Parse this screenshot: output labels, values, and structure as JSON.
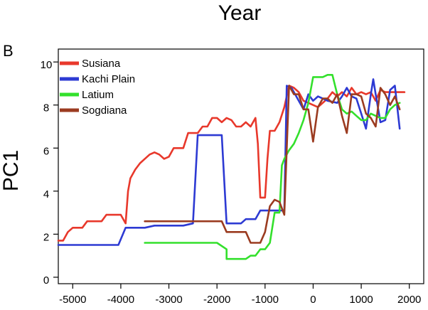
{
  "panel_letter": "B",
  "chart_data": {
    "type": "line",
    "title": "Year",
    "xlabel": "",
    "ylabel": "PC1",
    "xlim": [
      -5300,
      2300
    ],
    "ylim": [
      -0.3,
      10.6
    ],
    "xticks": [
      -5000,
      -4000,
      -3000,
      -2000,
      -1000,
      0,
      1000,
      2000
    ],
    "yticks": [
      0,
      2,
      4,
      6,
      8,
      10
    ],
    "grid": false,
    "legend": "top-left",
    "series": [
      {
        "name": "Susiana",
        "color": "#e8382b",
        "points": [
          [
            -5300,
            1.7
          ],
          [
            -5200,
            1.7
          ],
          [
            -5100,
            2.1
          ],
          [
            -5000,
            2.3
          ],
          [
            -4800,
            2.3
          ],
          [
            -4700,
            2.6
          ],
          [
            -4400,
            2.6
          ],
          [
            -4300,
            2.9
          ],
          [
            -4000,
            2.9
          ],
          [
            -3900,
            2.5
          ],
          [
            -3850,
            4.0
          ],
          [
            -3800,
            4.6
          ],
          [
            -3700,
            5.0
          ],
          [
            -3600,
            5.3
          ],
          [
            -3500,
            5.5
          ],
          [
            -3400,
            5.7
          ],
          [
            -3300,
            5.8
          ],
          [
            -3200,
            5.7
          ],
          [
            -3100,
            5.5
          ],
          [
            -3000,
            5.6
          ],
          [
            -2900,
            6.0
          ],
          [
            -2700,
            6.0
          ],
          [
            -2600,
            6.7
          ],
          [
            -2400,
            6.7
          ],
          [
            -2300,
            7.0
          ],
          [
            -2200,
            7.0
          ],
          [
            -2100,
            7.4
          ],
          [
            -2000,
            7.4
          ],
          [
            -1900,
            7.2
          ],
          [
            -1800,
            7.4
          ],
          [
            -1700,
            7.3
          ],
          [
            -1600,
            7.0
          ],
          [
            -1500,
            7.0
          ],
          [
            -1400,
            7.2
          ],
          [
            -1300,
            7.0
          ],
          [
            -1200,
            7.4
          ],
          [
            -1150,
            6.2
          ],
          [
            -1100,
            3.7
          ],
          [
            -1000,
            3.7
          ],
          [
            -950,
            5.5
          ],
          [
            -900,
            6.8
          ],
          [
            -800,
            6.8
          ],
          [
            -700,
            7.2
          ],
          [
            -600,
            7.9
          ],
          [
            -500,
            8.9
          ],
          [
            -400,
            8.8
          ],
          [
            -300,
            8.6
          ],
          [
            -200,
            8.2
          ],
          [
            0,
            8.0
          ],
          [
            100,
            7.9
          ],
          [
            200,
            8.1
          ],
          [
            300,
            8.3
          ],
          [
            400,
            8.6
          ],
          [
            500,
            8.4
          ],
          [
            600,
            8.6
          ],
          [
            700,
            8.4
          ],
          [
            800,
            8.8
          ],
          [
            900,
            8.5
          ],
          [
            1000,
            8.6
          ],
          [
            1100,
            8.5
          ],
          [
            1200,
            8.6
          ],
          [
            1300,
            8.2
          ],
          [
            1400,
            8.7
          ],
          [
            1500,
            8.6
          ],
          [
            1600,
            8.6
          ],
          [
            1800,
            8.6
          ],
          [
            1900,
            8.6
          ]
        ]
      },
      {
        "name": "Kachi Plain",
        "color": "#2d3ad3",
        "points": [
          [
            -5300,
            1.5
          ],
          [
            -4050,
            1.5
          ],
          [
            -3900,
            2.3
          ],
          [
            -3500,
            2.3
          ],
          [
            -3300,
            2.4
          ],
          [
            -2700,
            2.4
          ],
          [
            -2500,
            2.5
          ],
          [
            -2400,
            6.6
          ],
          [
            -1900,
            6.6
          ],
          [
            -1800,
            2.5
          ],
          [
            -1500,
            2.5
          ],
          [
            -1400,
            2.7
          ],
          [
            -1200,
            2.7
          ],
          [
            -1100,
            3.1
          ],
          [
            -700,
            3.1
          ],
          [
            -600,
            3.1
          ],
          [
            -550,
            8.9
          ],
          [
            -450,
            8.8
          ],
          [
            -350,
            8.4
          ],
          [
            -200,
            7.8
          ],
          [
            -100,
            8.5
          ],
          [
            0,
            8.2
          ],
          [
            100,
            8.4
          ],
          [
            200,
            8.3
          ],
          [
            300,
            8.2
          ],
          [
            500,
            8.1
          ],
          [
            600,
            8.4
          ],
          [
            700,
            8.8
          ],
          [
            800,
            8.4
          ],
          [
            900,
            8.3
          ],
          [
            1000,
            7.6
          ],
          [
            1100,
            6.9
          ],
          [
            1200,
            8.5
          ],
          [
            1250,
            9.2
          ],
          [
            1300,
            8.5
          ],
          [
            1400,
            7.2
          ],
          [
            1500,
            7.3
          ],
          [
            1600,
            8.7
          ],
          [
            1700,
            8.9
          ],
          [
            1800,
            6.9
          ]
        ]
      },
      {
        "name": "Latium",
        "color": "#33e02c",
        "points": [
          [
            -3500,
            1.6
          ],
          [
            -2000,
            1.6
          ],
          [
            -1800,
            1.3
          ],
          [
            -1800,
            0.85
          ],
          [
            -1400,
            0.85
          ],
          [
            -1300,
            1.0
          ],
          [
            -1200,
            1.0
          ],
          [
            -1100,
            1.3
          ],
          [
            -1000,
            1.3
          ],
          [
            -900,
            1.6
          ],
          [
            -800,
            3.0
          ],
          [
            -700,
            3.0
          ],
          [
            -650,
            5.2
          ],
          [
            -600,
            5.5
          ],
          [
            -500,
            5.9
          ],
          [
            -400,
            6.2
          ],
          [
            -300,
            6.7
          ],
          [
            -200,
            7.3
          ],
          [
            -100,
            8.1
          ],
          [
            0,
            9.3
          ],
          [
            100,
            9.3
          ],
          [
            200,
            9.3
          ],
          [
            300,
            9.4
          ],
          [
            400,
            9.4
          ],
          [
            500,
            8.5
          ],
          [
            600,
            7.8
          ],
          [
            700,
            7.6
          ],
          [
            800,
            7.7
          ],
          [
            900,
            7.5
          ],
          [
            1000,
            7.3
          ],
          [
            1100,
            7.3
          ],
          [
            1200,
            7.6
          ],
          [
            1300,
            7.5
          ],
          [
            1400,
            7.4
          ],
          [
            1500,
            7.4
          ],
          [
            1600,
            7.8
          ],
          [
            1700,
            8.0
          ],
          [
            1800,
            8.1
          ]
        ]
      },
      {
        "name": "Sogdiana",
        "color": "#9b3b20",
        "points": [
          [
            -3500,
            2.6
          ],
          [
            -2500,
            2.6
          ],
          [
            -2400,
            2.6
          ],
          [
            -1900,
            2.6
          ],
          [
            -1800,
            2.1
          ],
          [
            -1400,
            2.1
          ],
          [
            -1300,
            1.6
          ],
          [
            -1100,
            1.6
          ],
          [
            -1000,
            2.1
          ],
          [
            -900,
            3.3
          ],
          [
            -800,
            3.6
          ],
          [
            -700,
            3.5
          ],
          [
            -600,
            2.9
          ],
          [
            -500,
            8.9
          ],
          [
            -400,
            8.5
          ],
          [
            -300,
            8.5
          ],
          [
            -200,
            7.8
          ],
          [
            -100,
            7.8
          ],
          [
            0,
            6.3
          ],
          [
            100,
            7.9
          ],
          [
            200,
            8.3
          ],
          [
            300,
            8.3
          ],
          [
            400,
            8.1
          ],
          [
            500,
            8.5
          ],
          [
            600,
            7.5
          ],
          [
            700,
            6.7
          ],
          [
            800,
            8.5
          ],
          [
            900,
            8.5
          ],
          [
            1000,
            8.4
          ],
          [
            1100,
            7.6
          ],
          [
            1200,
            7.4
          ],
          [
            1300,
            7.0
          ],
          [
            1400,
            8.8
          ],
          [
            1500,
            8.5
          ],
          [
            1600,
            8.0
          ],
          [
            1700,
            8.4
          ],
          [
            1800,
            7.8
          ]
        ]
      }
    ]
  }
}
